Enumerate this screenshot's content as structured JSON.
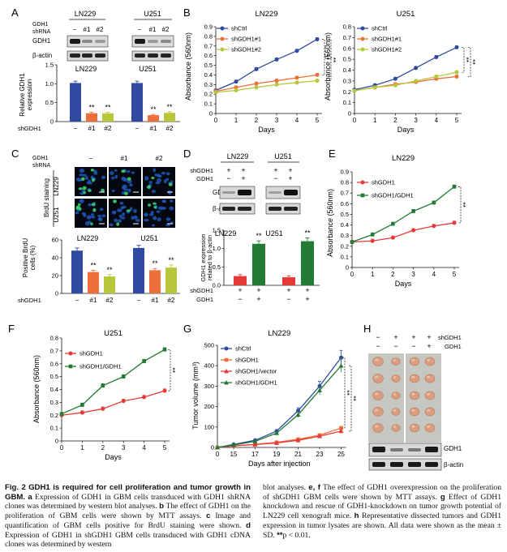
{
  "panel_letters": {
    "a": "A",
    "b": "B",
    "c": "C",
    "d": "D",
    "e": "E",
    "f": "F",
    "g": "G",
    "h": "H"
  },
  "colors": {
    "blue": "#2f4aa0",
    "orange": "#ee6f3a",
    "olive": "#b7c63a",
    "red": "#e63a3a",
    "green": "#237a34",
    "dark": "#111111",
    "dapi": "#1f57b8",
    "brdu": "#3ccf6a"
  },
  "common": {
    "gdh1_shrna_l1": "GDH1",
    "gdh1_shrna_l2": "shRNA",
    "gdh1": "GDH1",
    "bactin": "β-actin",
    "dash": "−",
    "c1": "#1",
    "c2": "#2",
    "plus": "+",
    "minus": "−",
    "sig": "**",
    "shgdh1": "shGDH1",
    "days": "Days",
    "abs": "Absorbance (560nm)",
    "ln229": "LN229",
    "u251": "U251"
  },
  "panel_a": {
    "bar_ylabel_l1": "Relative GDH1",
    "bar_ylabel_l2": "expression",
    "yticks": [
      "0",
      "0.5",
      "1.0",
      "1.5"
    ],
    "xlabel_lead": "shGDH1",
    "chart_data": [
      {
        "type": "bar",
        "title": "LN229",
        "categories": [
          "−",
          "#1",
          "#2"
        ],
        "values": [
          1.02,
          0.22,
          0.22
        ],
        "errors": [
          0.05,
          0.03,
          0.03
        ],
        "significance": [
          "",
          "**",
          "**"
        ],
        "ylim": [
          0,
          1.5
        ],
        "ylabel": "Relative GDH1 expression"
      },
      {
        "type": "bar",
        "title": "U251",
        "categories": [
          "−",
          "#1",
          "#2"
        ],
        "values": [
          1.02,
          0.17,
          0.23
        ],
        "errors": [
          0.05,
          0.02,
          0.03
        ],
        "significance": [
          "",
          "**",
          "**"
        ],
        "ylim": [
          0,
          1.5
        ],
        "ylabel": "Relative GDH1 expression"
      }
    ]
  },
  "panel_b": {
    "chart_data": [
      {
        "type": "line",
        "title": "LN229",
        "x": [
          0,
          1,
          2,
          3,
          4,
          5
        ],
        "xlabel": "Days",
        "ylabel": "Absorbance (560nm)",
        "ylim": [
          0,
          0.9
        ],
        "yticks": [
          "0",
          "0.1",
          "0.2",
          "0.3",
          "0.4",
          "0.5",
          "0.6",
          "0.7",
          "0.8",
          "0.9"
        ],
        "series": [
          {
            "name": "shCtrl",
            "values": [
              0.24,
              0.33,
              0.46,
              0.56,
              0.65,
              0.77
            ]
          },
          {
            "name": "shGDH1#1",
            "values": [
              0.23,
              0.27,
              0.31,
              0.34,
              0.37,
              0.4
            ]
          },
          {
            "name": "shGDH1#2",
            "values": [
              0.22,
              0.24,
              0.27,
              0.3,
              0.32,
              0.34
            ]
          }
        ],
        "annotations": [
          "**",
          "**"
        ]
      },
      {
        "type": "line",
        "title": "U251",
        "x": [
          0,
          1,
          2,
          3,
          4,
          5
        ],
        "xlabel": "Days",
        "ylabel": "Absorbance (560nm)",
        "ylim": [
          0,
          0.8
        ],
        "yticks": [
          "0",
          "0.1",
          "0.2",
          "0.3",
          "0.4",
          "0.5",
          "0.6",
          "0.7",
          "0.8"
        ],
        "series": [
          {
            "name": "shCtrl",
            "values": [
              0.22,
              0.26,
              0.32,
              0.42,
              0.52,
              0.61
            ]
          },
          {
            "name": "shGDH1#1",
            "values": [
              0.21,
              0.24,
              0.27,
              0.29,
              0.32,
              0.34
            ]
          },
          {
            "name": "shGDH1#2",
            "values": [
              0.21,
              0.24,
              0.26,
              0.3,
              0.34,
              0.38
            ]
          }
        ],
        "annotations": [
          "**",
          "**"
        ]
      }
    ]
  },
  "panel_c": {
    "side_label": "BrdU staining",
    "bar_ylabel_l1": "Positive BrdU",
    "bar_ylabel_l2": "cells (%)",
    "yticks": [
      "0",
      "20",
      "40",
      "60"
    ],
    "xlabel_lead": "shGDH1",
    "chart_data": [
      {
        "type": "bar",
        "title": "LN229",
        "categories": [
          "−",
          "#1",
          "#2"
        ],
        "values": [
          48,
          24,
          19
        ],
        "errors": [
          3,
          2,
          2
        ],
        "significance": [
          "",
          "**",
          "**"
        ],
        "ylim": [
          0,
          60
        ],
        "ylabel": "Positive BrdU cells (%)"
      },
      {
        "type": "bar",
        "title": "U251",
        "categories": [
          "−",
          "#1",
          "#2"
        ],
        "values": [
          51,
          26,
          29
        ],
        "errors": [
          3,
          2,
          3
        ],
        "significance": [
          "",
          "**",
          "**"
        ],
        "ylim": [
          0,
          60
        ],
        "ylabel": "Positive BrdU cells (%)"
      }
    ]
  },
  "panel_d": {
    "row1": "shGDH1",
    "row2": "GDH1",
    "bar_ylabel_l1": "GDH1 expression",
    "bar_ylabel_l2": "related to β-actin",
    "yticks": [
      "0.0",
      "0.5",
      "1.0",
      "1.5"
    ],
    "chart_data": [
      {
        "type": "bar",
        "title": "LN229",
        "categories": [
          "shGDH1",
          "shGDH1/GDH1"
        ],
        "values": [
          0.25,
          1.13
        ],
        "errors": [
          0.04,
          0.08
        ],
        "significance": [
          "",
          "**"
        ],
        "ylim": [
          0,
          1.5
        ]
      },
      {
        "type": "bar",
        "title": "U251",
        "categories": [
          "shGDH1",
          "shGDH1/GDH1"
        ],
        "values": [
          0.22,
          1.2
        ],
        "errors": [
          0.04,
          0.09
        ],
        "significance": [
          "",
          "**"
        ],
        "ylim": [
          0,
          1.5
        ]
      }
    ]
  },
  "panel_e": {
    "chart_data": {
      "type": "line",
      "title": "LN229",
      "x": [
        0,
        1,
        2,
        3,
        4,
        5
      ],
      "xlabel": "Days",
      "ylabel": "Absorbance (560nm)",
      "ylim": [
        0,
        0.9
      ],
      "yticks": [
        "0",
        "0.1",
        "0.2",
        "0.3",
        "0.4",
        "0.5",
        "0.6",
        "0.7",
        "0.8",
        "0.9"
      ],
      "series": [
        {
          "name": "shGDH1",
          "values": [
            0.24,
            0.25,
            0.28,
            0.35,
            0.39,
            0.42
          ]
        },
        {
          "name": "shGDH1/GDH1",
          "values": [
            0.24,
            0.31,
            0.41,
            0.53,
            0.61,
            0.76
          ]
        }
      ],
      "annotations": [
        "**"
      ]
    }
  },
  "panel_f": {
    "chart_data": {
      "type": "line",
      "title": "U251",
      "x": [
        0,
        1,
        2,
        3,
        4,
        5
      ],
      "xlabel": "Days",
      "ylabel": "Absorbance (560nm)",
      "ylim": [
        0,
        0.8
      ],
      "yticks": [
        "0",
        "0.1",
        "0.2",
        "0.3",
        "0.4",
        "0.5",
        "0.6",
        "0.7",
        "0.8"
      ],
      "series": [
        {
          "name": "shGDH1",
          "values": [
            0.2,
            0.22,
            0.25,
            0.31,
            0.34,
            0.39
          ]
        },
        {
          "name": "shGDH1/GDH1",
          "values": [
            0.21,
            0.28,
            0.43,
            0.5,
            0.62,
            0.71
          ]
        }
      ],
      "annotations": [
        "**"
      ]
    }
  },
  "panel_g": {
    "chart_data": {
      "type": "line",
      "title": "LN229",
      "x": [
        0,
        15,
        17,
        19,
        21,
        23,
        25
      ],
      "xticks": [
        "0",
        "15",
        "17",
        "19",
        "21",
        "23",
        "25"
      ],
      "xlabel": "Days after injection",
      "ylabel": "Tumor volume (mm³)",
      "ylim": [
        0,
        500
      ],
      "yticks": [
        "0",
        "100",
        "200",
        "300",
        "400",
        "500"
      ],
      "series": [
        {
          "name": "shCtrl",
          "values": [
            0,
            15,
            35,
            80,
            180,
            300,
            440
          ]
        },
        {
          "name": "shGDH1",
          "values": [
            0,
            8,
            15,
            25,
            40,
            60,
            95
          ]
        },
        {
          "name": "shGDH1/vector",
          "values": [
            0,
            8,
            14,
            22,
            35,
            55,
            80
          ]
        },
        {
          "name": "shGDH1/GDH1",
          "values": [
            0,
            12,
            30,
            70,
            160,
            280,
            400
          ]
        }
      ],
      "annotations": [
        "**",
        "**"
      ]
    }
  },
  "panel_h": {
    "row1": "shGDH1",
    "row2": "GDH1"
  },
  "caption": {
    "label": "Fig. 2",
    "title": "GDH1 is required for cell proliferation and tumor growth in GBM.",
    "left": [
      {
        "b": "a",
        "t": " Expression of GDH1 in GBM cells transduced with GDH1 shRNA clones was determined by western blot analyses. "
      },
      {
        "b": "b",
        "t": " The effect of GDH1 on the proliferation of GBM cells were shown by MTT assays. "
      },
      {
        "b": "c",
        "t": " Image and quantification of GBM cells positive for BrdU staining were shown. "
      },
      {
        "b": "d",
        "t": " Expression of GDH1 in shGDH1 GBM cells transduced with GDH1 cDNA clones was determined by western"
      }
    ],
    "right": [
      {
        "b": "",
        "t": "blot analyses. "
      },
      {
        "b": "e, f",
        "t": " The effect of GDH1 overexpression on the proliferation of shGDH1 GBM cells were shown by MTT assays. "
      },
      {
        "b": "g",
        "t": " Effect of GDH1 knockdown and rescue of GDH1-knockdown on tumor growth potential of LN229 cell xenograft mice. "
      },
      {
        "b": "h",
        "t": " Representative dissected tumors and GDH1 expression in tumor lysates are shown. All data were shown as the mean ± SD. "
      },
      {
        "b": "**",
        "t": "p < 0.01."
      }
    ]
  }
}
